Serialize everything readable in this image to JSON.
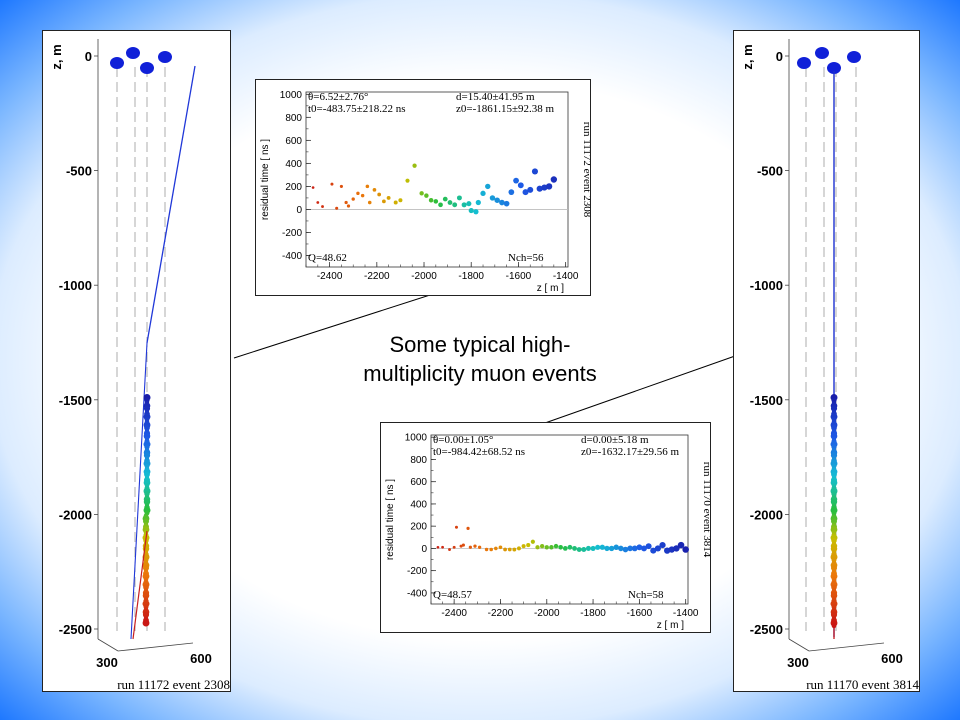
{
  "caption": [
    "Some typical high-",
    "multiplicity muon events"
  ],
  "colors": {
    "background_edge": "#1e78ff",
    "track_blue": "#1c34d8",
    "track_red": "#d01818",
    "dashed_line": "#999999"
  },
  "chart_data": [
    {
      "type": "scatter",
      "view": "event-display-3d",
      "ylabel": "z, m",
      "yticks": [
        "0",
        "-500",
        "-1000",
        "-1500",
        "-2000",
        "-2500"
      ],
      "ylim": [
        -2700,
        120
      ],
      "xticks": [
        "300",
        "600"
      ],
      "footer": "run 11172  event 2308",
      "hit_strings_top_z": 0,
      "hit_z_range": [
        -2480,
        -1490
      ],
      "track": {
        "z_top": 0,
        "z_bottom": -2560,
        "inclined": true
      },
      "grid": false
    },
    {
      "type": "scatter",
      "title_left_1": "θ=6.52±2.76°",
      "title_left_2": "t0=-483.75±218.22 ns",
      "title_right_1": "d=15.40±41.95 m",
      "title_right_2": "z0=-1861.15±92.38 m",
      "side_label": "run 11172  event 2308",
      "q_label": "Q=48.62",
      "nch_label": "Nch=56",
      "xlabel": "z [ m ]",
      "ylabel": "residual time [ ns ]",
      "xticks": [
        "-2400",
        "-2200",
        "-2000",
        "-1800",
        "-1600",
        "-1400"
      ],
      "yticks": [
        "1000",
        "800",
        "600",
        "400",
        "200",
        "0",
        "-200",
        "-400"
      ],
      "xlim": [
        -2500,
        -1390
      ],
      "ylim": [
        -500,
        1020
      ],
      "points": [
        [
          -2470,
          190
        ],
        [
          -2450,
          60
        ],
        [
          -2430,
          25
        ],
        [
          -2390,
          220
        ],
        [
          -2370,
          10
        ],
        [
          -2350,
          200
        ],
        [
          -2330,
          60
        ],
        [
          -2320,
          30
        ],
        [
          -2300,
          90
        ],
        [
          -2280,
          140
        ],
        [
          -2260,
          120
        ],
        [
          -2240,
          200
        ],
        [
          -2230,
          60
        ],
        [
          -2210,
          170
        ],
        [
          -2190,
          130
        ],
        [
          -2170,
          70
        ],
        [
          -2150,
          100
        ],
        [
          -2120,
          60
        ],
        [
          -2100,
          80
        ],
        [
          -2070,
          250
        ],
        [
          -2040,
          380
        ],
        [
          -2010,
          140
        ],
        [
          -1990,
          120
        ],
        [
          -1970,
          80
        ],
        [
          -1950,
          70
        ],
        [
          -1930,
          40
        ],
        [
          -1910,
          90
        ],
        [
          -1890,
          60
        ],
        [
          -1870,
          40
        ],
        [
          -1850,
          100
        ],
        [
          -1830,
          40
        ],
        [
          -1810,
          50
        ],
        [
          -1800,
          -10
        ],
        [
          -1780,
          -20
        ],
        [
          -1770,
          60
        ],
        [
          -1750,
          140
        ],
        [
          -1730,
          200
        ],
        [
          -1710,
          100
        ],
        [
          -1690,
          80
        ],
        [
          -1670,
          60
        ],
        [
          -1650,
          50
        ],
        [
          -1630,
          150
        ],
        [
          -1610,
          250
        ],
        [
          -1590,
          210
        ],
        [
          -1570,
          150
        ],
        [
          -1550,
          170
        ],
        [
          -1530,
          330
        ],
        [
          -1510,
          180
        ],
        [
          -1490,
          190
        ],
        [
          -1470,
          200
        ],
        [
          -1450,
          260
        ]
      ]
    },
    {
      "type": "scatter",
      "title_left_1": "θ=0.00±1.05°",
      "title_left_2": "t0=-984.42±68.52 ns",
      "title_right_1": "d=0.00±5.18 m",
      "title_right_2": "z0=-1632.17±29.56 m",
      "side_label": "run 11170  event 3814",
      "q_label": "Q=48.57",
      "nch_label": "Nch=58",
      "xlabel": "z [ m ]",
      "ylabel": "residual time [ ns ]",
      "xticks": [
        "-2400",
        "-2200",
        "-2000",
        "-1800",
        "-1600",
        "-1400"
      ],
      "yticks": [
        "1000",
        "800",
        "600",
        "400",
        "200",
        "0",
        "-200",
        "-400"
      ],
      "xlim": [
        -2500,
        -1390
      ],
      "ylim": [
        -500,
        1020
      ],
      "points": [
        [
          -2470,
          10
        ],
        [
          -2450,
          10
        ],
        [
          -2420,
          -10
        ],
        [
          -2400,
          10
        ],
        [
          -2390,
          190
        ],
        [
          -2370,
          20
        ],
        [
          -2360,
          30
        ],
        [
          -2340,
          180
        ],
        [
          -2330,
          10
        ],
        [
          -2310,
          20
        ],
        [
          -2290,
          10
        ],
        [
          -2260,
          -10
        ],
        [
          -2240,
          -10
        ],
        [
          -2220,
          0
        ],
        [
          -2200,
          10
        ],
        [
          -2180,
          -10
        ],
        [
          -2160,
          -10
        ],
        [
          -2140,
          -10
        ],
        [
          -2120,
          0
        ],
        [
          -2100,
          20
        ],
        [
          -2080,
          30
        ],
        [
          -2060,
          60
        ],
        [
          -2040,
          10
        ],
        [
          -2020,
          20
        ],
        [
          -2000,
          10
        ],
        [
          -1980,
          10
        ],
        [
          -1960,
          20
        ],
        [
          -1940,
          10
        ],
        [
          -1920,
          0
        ],
        [
          -1900,
          10
        ],
        [
          -1880,
          0
        ],
        [
          -1860,
          -10
        ],
        [
          -1840,
          -10
        ],
        [
          -1820,
          0
        ],
        [
          -1800,
          0
        ],
        [
          -1780,
          10
        ],
        [
          -1760,
          10
        ],
        [
          -1740,
          0
        ],
        [
          -1720,
          0
        ],
        [
          -1700,
          10
        ],
        [
          -1680,
          0
        ],
        [
          -1660,
          -10
        ],
        [
          -1640,
          0
        ],
        [
          -1620,
          0
        ],
        [
          -1600,
          10
        ],
        [
          -1580,
          0
        ],
        [
          -1560,
          20
        ],
        [
          -1540,
          -20
        ],
        [
          -1520,
          0
        ],
        [
          -1500,
          30
        ],
        [
          -1480,
          -20
        ],
        [
          -1460,
          -10
        ],
        [
          -1440,
          0
        ],
        [
          -1420,
          30
        ],
        [
          -1400,
          -10
        ]
      ]
    },
    {
      "type": "scatter",
      "view": "event-display-3d",
      "ylabel": "z, m",
      "yticks": [
        "0",
        "-500",
        "-1000",
        "-1500",
        "-2000",
        "-2500"
      ],
      "ylim": [
        -2700,
        120
      ],
      "xticks": [
        "300",
        "600"
      ],
      "footer": "run 11170  event 3814",
      "hit_strings_top_z": 0,
      "hit_z_range": [
        -2490,
        -1490
      ],
      "track": {
        "z_top": 0,
        "z_bottom": -2560,
        "inclined": false
      },
      "grid": false
    }
  ]
}
